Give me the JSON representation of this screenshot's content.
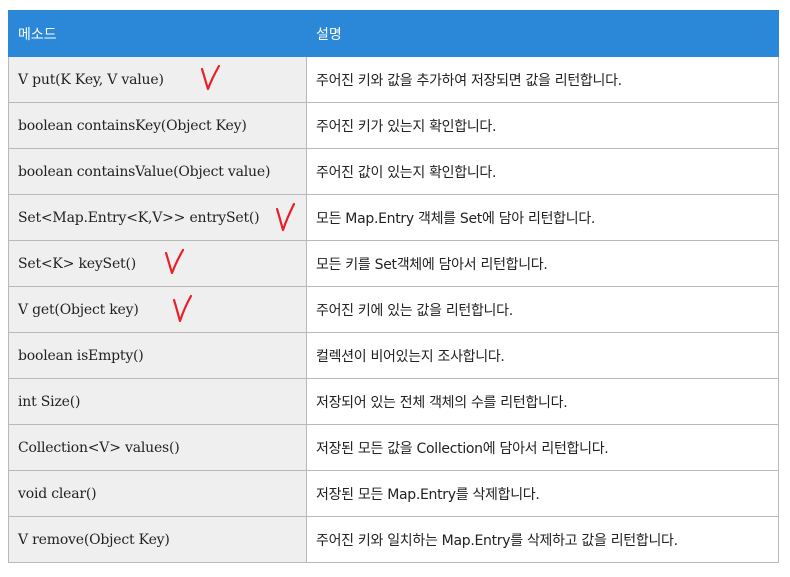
{
  "header": {
    "method": "메소드",
    "description": "설명"
  },
  "rows": [
    {
      "method": "V put(K Key, V value)",
      "description": "주어진 키와 값을 추가하여 저장되면 값을 리턴합니다.",
      "checked": true
    },
    {
      "method": "boolean containsKey(Object Key)",
      "description": "주어진 키가 있는지 확인합니다.",
      "checked": false
    },
    {
      "method": "boolean containsValue(Object value)",
      "description": "주어진 값이 있는지 확인합니다.",
      "checked": false
    },
    {
      "method": "Set<Map.Entry<K,V>> entrySet()",
      "description": "모든 Map.Entry 객체를 Set에 담아 리턴합니다.",
      "checked": true
    },
    {
      "method": "Set<K> keySet()",
      "description": "모든 키를 Set객체에 담아서 리턴합니다.",
      "checked": true
    },
    {
      "method": "V get(Object key)",
      "description": "주어진 키에 있는 값을 리턴합니다.",
      "checked": true
    },
    {
      "method": "boolean isEmpty()",
      "description": "컬렉션이 비어있는지 조사합니다.",
      "checked": false
    },
    {
      "method": "int Size()",
      "description": "저장되어 있는 전체 객체의 수를 리턴합니다.",
      "checked": false
    },
    {
      "method": "Collection<V> values()",
      "description": "저장된 모든 값을 Collection에 담아서 리턴합니다.",
      "checked": false
    },
    {
      "method": "void clear()",
      "description": "저장된 모든 Map.Entry를 삭제합니다.",
      "checked": false
    },
    {
      "method": "V remove(Object Key)",
      "description": "주어진 키와 일치하는 Map.Entry를 삭제하고 값을 리턴합니다.",
      "checked": false
    }
  ],
  "colors": {
    "header_bg": "#2b88d8",
    "method_bg": "#efefef",
    "check_mark": "#e8202a"
  }
}
